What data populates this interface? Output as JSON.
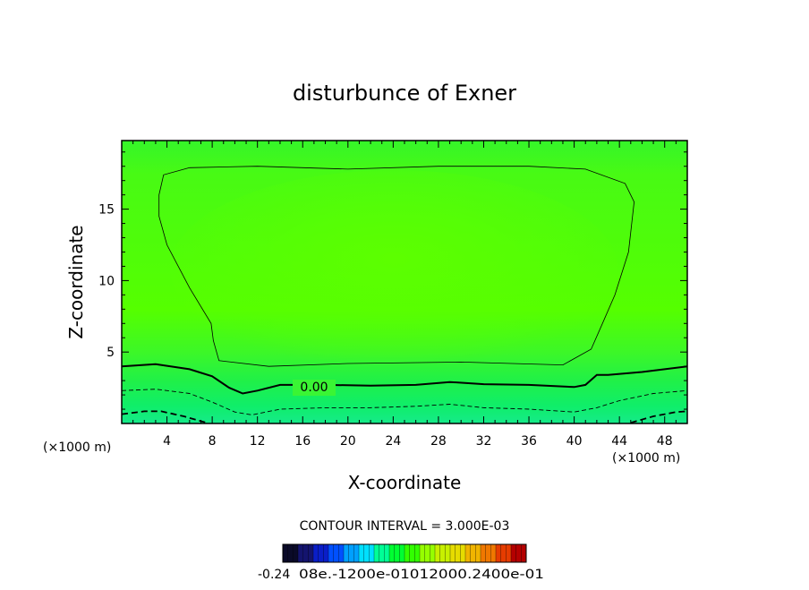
{
  "chart_data": {
    "type": "contour",
    "title": "disturbunce of Exner",
    "xlabel": "X-coordinate",
    "ylabel": "Z-coordinate",
    "x_unit": "(×1000 m)",
    "x_unit_right": "(×1000 m)",
    "xlim": [
      0,
      50
    ],
    "ylim": [
      0,
      19.8
    ],
    "x_ticks": [
      4,
      8,
      12,
      16,
      20,
      24,
      28,
      32,
      36,
      40,
      44,
      48
    ],
    "y_ticks": [
      5,
      10,
      15
    ],
    "contour_interval_text": "CONTOUR INTERVAL = 3.000E-03",
    "contour_label": "0.00",
    "colorbar": {
      "min_label": "-0.24",
      "overlap_label": "08e.-1200e-01012000.2400e-01",
      "colors": [
        "#0a0a28",
        "#14146e",
        "#0a1ec8",
        "#0050ff",
        "#00a0ff",
        "#00e0ff",
        "#00ff96",
        "#00ff32",
        "#32ff00",
        "#96ff00",
        "#c8f000",
        "#e6dc00",
        "#f0b400",
        "#f07800",
        "#e63c00",
        "#b40000"
      ]
    },
    "contours": [
      {
        "level": 0.003,
        "style": "thin",
        "points": [
          [
            3.3,
            16.0
          ],
          [
            3.7,
            17.4
          ],
          [
            6,
            17.9
          ],
          [
            12,
            18.0
          ],
          [
            20,
            17.8
          ],
          [
            28,
            18.0
          ],
          [
            36,
            18.0
          ],
          [
            41,
            17.8
          ],
          [
            44.5,
            16.8
          ],
          [
            45.3,
            15.5
          ],
          [
            44.8,
            12
          ],
          [
            43.6,
            9
          ],
          [
            42.5,
            7
          ],
          [
            41.5,
            5.2
          ],
          [
            39,
            4.1
          ],
          [
            30,
            4.3
          ],
          [
            20,
            4.2
          ],
          [
            13,
            4.0
          ],
          [
            8.6,
            4.4
          ],
          [
            8.1,
            5.8
          ],
          [
            7.9,
            7
          ],
          [
            6,
            9.5
          ],
          [
            4,
            12.5
          ],
          [
            3.3,
            14.5
          ],
          [
            3.3,
            16.0
          ]
        ]
      },
      {
        "level": 0.0,
        "style": "thick",
        "points": [
          [
            0,
            4.0
          ],
          [
            3,
            4.15
          ],
          [
            6,
            3.8
          ],
          [
            8,
            3.3
          ],
          [
            9.5,
            2.5
          ],
          [
            10.7,
            2.1
          ],
          [
            12,
            2.3
          ],
          [
            14,
            2.7
          ],
          [
            18,
            2.7
          ],
          [
            22,
            2.65
          ],
          [
            26,
            2.7
          ],
          [
            29,
            2.9
          ],
          [
            32,
            2.75
          ],
          [
            36,
            2.7
          ],
          [
            40,
            2.55
          ],
          [
            41,
            2.7
          ],
          [
            42,
            3.4
          ],
          [
            43,
            3.4
          ],
          [
            46,
            3.6
          ],
          [
            50,
            4.0
          ]
        ]
      },
      {
        "level": -0.003,
        "style": "dashed",
        "points": [
          [
            0,
            2.3
          ],
          [
            3,
            2.4
          ],
          [
            6,
            2.1
          ],
          [
            8,
            1.5
          ],
          [
            10,
            0.8
          ],
          [
            11.5,
            0.6
          ],
          [
            14,
            1.0
          ],
          [
            18,
            1.1
          ],
          [
            22,
            1.1
          ],
          [
            26,
            1.2
          ],
          [
            29,
            1.35
          ],
          [
            32,
            1.1
          ],
          [
            36,
            1.0
          ],
          [
            40,
            0.8
          ],
          [
            42,
            1.1
          ],
          [
            44,
            1.6
          ],
          [
            47,
            2.1
          ],
          [
            50,
            2.3
          ]
        ]
      },
      {
        "level": -0.006,
        "style": "dashed-thick",
        "points": [
          [
            0,
            0.65
          ],
          [
            2,
            0.85
          ],
          [
            3.5,
            0.85
          ],
          [
            5.5,
            0.5
          ],
          [
            7.5,
            0.05
          ]
        ]
      },
      {
        "level": -0.006,
        "style": "dashed-thick",
        "points": [
          [
            45,
            0.05
          ],
          [
            47,
            0.5
          ],
          [
            49,
            0.8
          ],
          [
            50,
            0.85
          ]
        ]
      }
    ]
  }
}
